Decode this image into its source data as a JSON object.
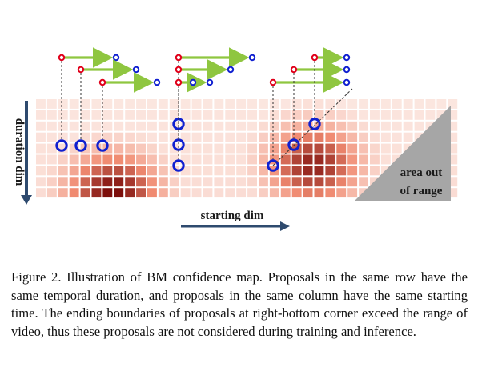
{
  "diagram": {
    "axis_y_label": "duration dim",
    "axis_x_label": "starting dim",
    "out_of_range_label_line1": "area out",
    "out_of_range_label_line2": "of range",
    "grid": {
      "rows": 9,
      "cols": 38
    },
    "heat": {
      "peaks": [
        {
          "col": 6.5,
          "row": 8,
          "level": 1.0
        },
        {
          "col": 24.5,
          "row": 5.5,
          "level": 0.9
        }
      ]
    },
    "proposal_groups": [
      {
        "name": "same-duration-row",
        "count": 3
      },
      {
        "name": "same-start-column",
        "count": 3
      },
      {
        "name": "out-of-range-diagonal",
        "count": 3
      }
    ],
    "colors": {
      "arrow": "#8fc640",
      "start_marker": "#e0001a",
      "end_marker": "#1020d0",
      "axis": "#2e4a6e",
      "out_of_range": "#a6a6a6",
      "heat_low": "#fbe9e4",
      "heat_high": "#7a0a08"
    }
  },
  "caption": {
    "text": "Figure 2. Illustration of BM confidence map. Proposals in the same row have the same temporal duration, and proposals in the same column have the same starting time. The ending boundaries of proposals at right-bottom corner exceed the range of video, thus these proposals are not considered during training and inference."
  }
}
